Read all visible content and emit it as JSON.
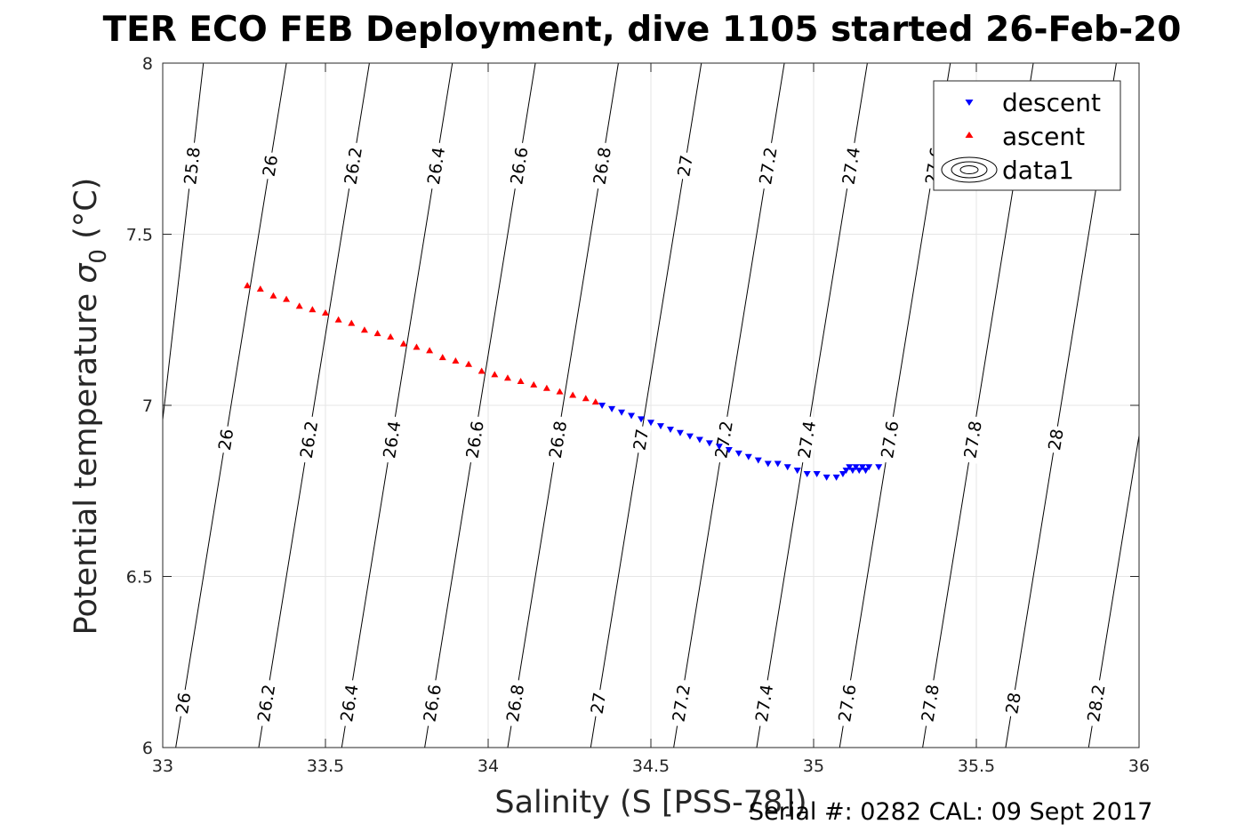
{
  "chart_data": {
    "type": "scatter",
    "title": "TER ECO FEB Deployment, dive 1105 started 26-Feb-20",
    "xlabel": "Salinity (S [PSS-78])",
    "ylabel_main": "Potential temperature ",
    "ylabel_sigma": "σ",
    "ylabel_sub": "0",
    "ylabel_unit": " (°C)",
    "xlim": [
      33,
      36
    ],
    "ylim": [
      6,
      8
    ],
    "x_ticks": [
      33,
      33.5,
      34,
      34.5,
      35,
      35.5,
      36
    ],
    "x_tick_labels": [
      "33",
      "33.5",
      "34",
      "34.5",
      "35",
      "35.5",
      "36"
    ],
    "y_ticks": [
      6,
      6.5,
      7,
      7.5,
      8
    ],
    "y_tick_labels": [
      "6",
      "6.5",
      "7",
      "7.5",
      "8"
    ],
    "grid": true,
    "legend_position": "top-right",
    "series": [
      {
        "name": "descent",
        "marker": "triangle-down",
        "color": "#0000ff",
        "x": [
          34.35,
          34.38,
          34.41,
          34.44,
          34.47,
          34.5,
          34.53,
          34.56,
          34.59,
          34.62,
          34.65,
          34.68,
          34.71,
          34.74,
          34.77,
          34.8,
          34.83,
          34.86,
          34.89,
          34.92,
          34.95,
          34.98,
          35.01,
          35.04,
          35.07,
          35.09,
          35.1,
          35.11,
          35.12,
          35.13,
          35.14,
          35.15,
          35.16,
          35.17,
          35.2
        ],
        "y": [
          7.0,
          6.99,
          6.98,
          6.97,
          6.96,
          6.95,
          6.94,
          6.93,
          6.92,
          6.91,
          6.9,
          6.89,
          6.88,
          6.87,
          6.86,
          6.85,
          6.84,
          6.83,
          6.83,
          6.82,
          6.81,
          6.8,
          6.8,
          6.79,
          6.79,
          6.8,
          6.81,
          6.82,
          6.81,
          6.82,
          6.81,
          6.82,
          6.81,
          6.82,
          6.82
        ]
      },
      {
        "name": "ascent",
        "marker": "triangle-up",
        "color": "#ff0000",
        "x": [
          33.26,
          33.3,
          33.34,
          33.38,
          33.42,
          33.46,
          33.5,
          33.54,
          33.58,
          33.62,
          33.66,
          33.7,
          33.74,
          33.78,
          33.82,
          33.86,
          33.9,
          33.94,
          33.98,
          34.02,
          34.06,
          34.1,
          34.14,
          34.18,
          34.22,
          34.26,
          34.3,
          34.33
        ],
        "y": [
          7.35,
          7.34,
          7.32,
          7.31,
          7.29,
          7.28,
          7.27,
          7.25,
          7.24,
          7.22,
          7.21,
          7.2,
          7.18,
          7.17,
          7.16,
          7.14,
          7.13,
          7.12,
          7.1,
          7.09,
          7.08,
          7.07,
          7.06,
          7.05,
          7.04,
          7.03,
          7.02,
          7.01
        ]
      },
      {
        "name": "data1",
        "marker": "contour",
        "color": "#000000"
      }
    ],
    "contours": {
      "color": "#000000",
      "lines": [
        {
          "level": "25.8",
          "bottom_x": 32.885,
          "top_x": 33.125
        },
        {
          "level": "26",
          "bottom_x": 33.04,
          "top_x": 33.38
        },
        {
          "level": "26.2",
          "bottom_x": 33.295,
          "top_x": 33.635
        },
        {
          "level": "26.4",
          "bottom_x": 33.55,
          "top_x": 33.89
        },
        {
          "level": "26.6",
          "bottom_x": 33.805,
          "top_x": 34.145
        },
        {
          "level": "26.8",
          "bottom_x": 34.06,
          "top_x": 34.4
        },
        {
          "level": "27",
          "bottom_x": 34.315,
          "top_x": 34.655
        },
        {
          "level": "27.2",
          "bottom_x": 34.57,
          "top_x": 34.91
        },
        {
          "level": "27.4",
          "bottom_x": 34.825,
          "top_x": 35.165
        },
        {
          "level": "27.6",
          "bottom_x": 35.08,
          "top_x": 35.42
        },
        {
          "level": "27.8",
          "bottom_x": 35.335,
          "top_x": 35.675
        },
        {
          "level": "28",
          "bottom_x": 35.59,
          "top_x": 35.93
        },
        {
          "level": "28.2",
          "bottom_x": 35.845,
          "top_x": 36.185
        }
      ],
      "label_rows": [
        7.7,
        6.9,
        6.13
      ]
    }
  },
  "footer": "Serial #: 0282  CAL: 09 Sept 2017"
}
